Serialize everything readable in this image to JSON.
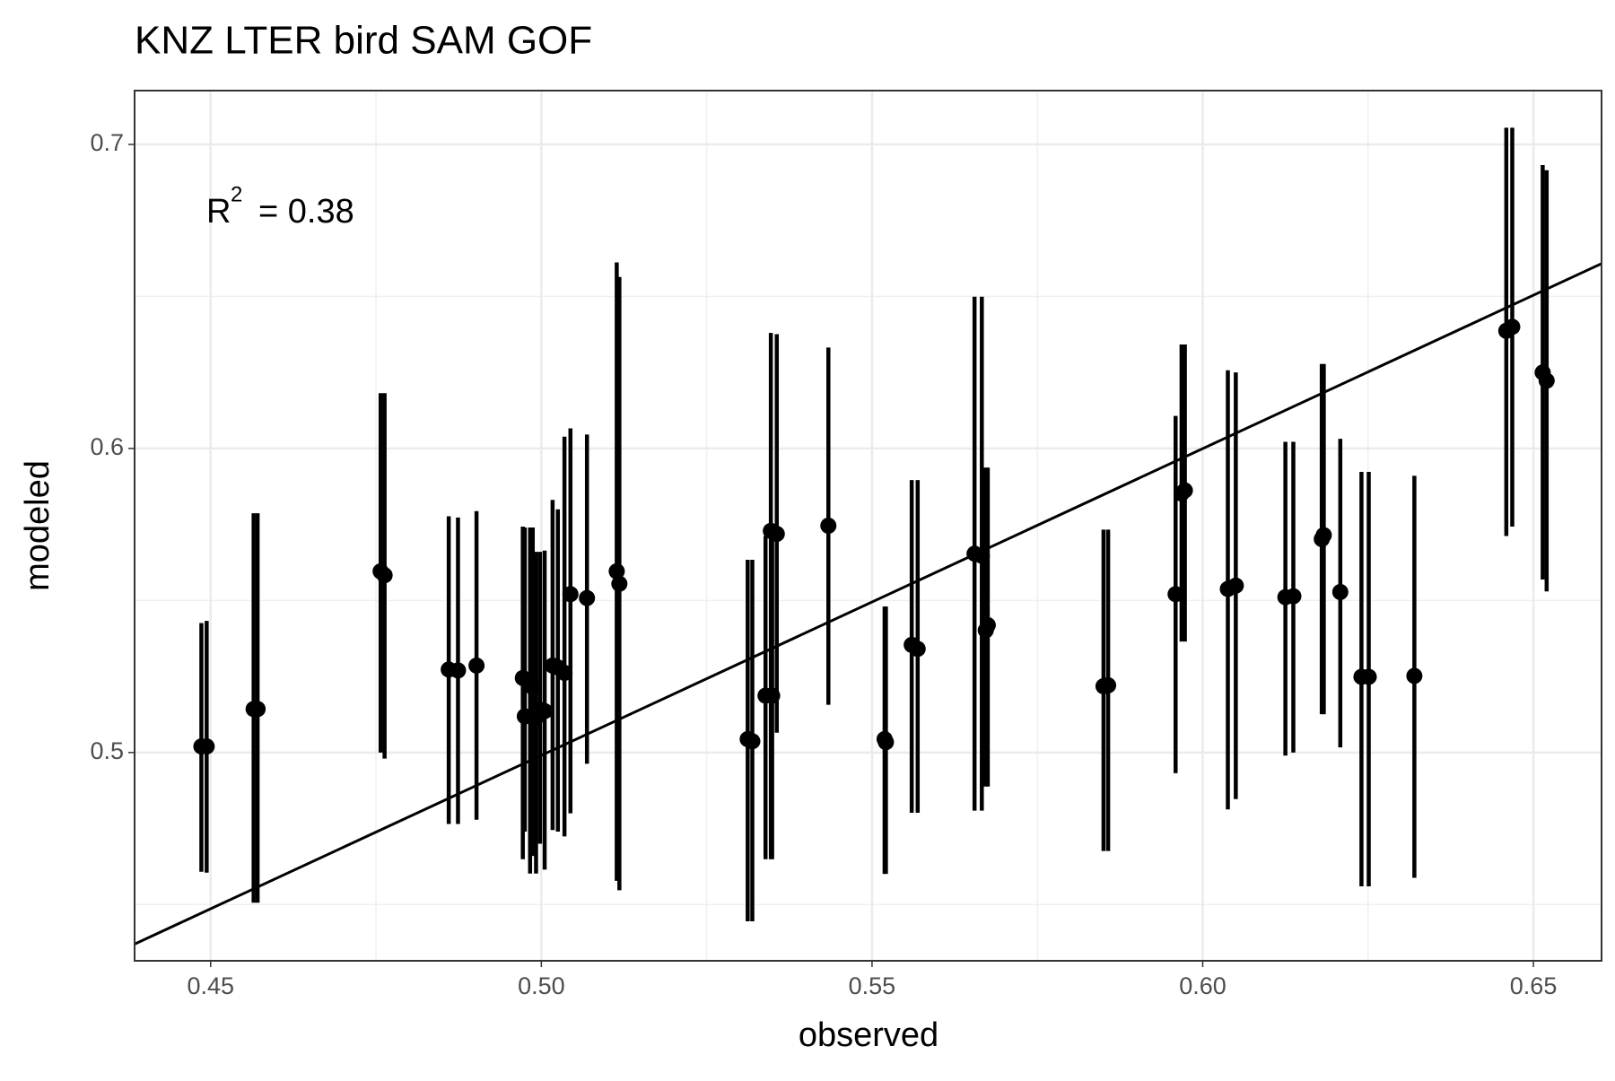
{
  "chart_data": {
    "type": "scatter-errorbar",
    "title": "KNZ LTER bird SAM GOF",
    "x_label": "observed",
    "y_label": "modeled",
    "annotation": {
      "base": "R",
      "superscript": "2",
      "text": "= 0.38"
    },
    "color": "#000000",
    "grid": true,
    "xlim": [
      0.4385,
      0.6603
    ],
    "ylim": [
      0.4315,
      0.7177
    ],
    "xticks": [
      0.45,
      {
        "value": 0.5,
        "label": "0.50"
      },
      0.55,
      {
        "value": 0.6,
        "label": "0.60"
      },
      0.65
    ],
    "yticks": [
      0.5,
      0.6,
      0.7
    ],
    "minor_xticks": [
      0.475,
      0.525,
      0.575,
      0.625
    ],
    "minor_yticks": [
      0.45,
      0.55,
      0.65
    ],
    "x": [
      0.4486,
      0.4494,
      0.4565,
      0.4571,
      0.4757,
      0.4763,
      0.486,
      0.4874,
      0.4902,
      0.4972,
      0.4975,
      0.4983,
      0.4987,
      0.4992,
      0.4998,
      0.5005,
      0.5017,
      0.5025,
      0.5035,
      0.5044,
      0.5069,
      0.5114,
      0.5118,
      0.5312,
      0.5319,
      0.5339,
      0.5349,
      0.5347,
      0.5356,
      0.5434,
      0.5519,
      0.5521,
      0.556,
      0.5569,
      0.5655,
      0.5666,
      0.5672,
      0.5675,
      0.585,
      0.5857,
      0.5959,
      0.5968,
      0.5973,
      0.6038,
      0.605,
      0.6125,
      0.6137,
      0.618,
      0.6183,
      0.6208,
      0.624,
      0.6251,
      0.632,
      0.6459,
      0.6468,
      0.6514,
      0.652
    ],
    "values": [
      0.502,
      0.502,
      0.5143,
      0.5143,
      0.5596,
      0.5583,
      0.5273,
      0.527,
      0.5286,
      0.5245,
      0.5119,
      0.5228,
      0.5215,
      0.5116,
      0.514,
      0.5136,
      0.5286,
      0.528,
      0.5262,
      0.5521,
      0.5508,
      0.5596,
      0.5555,
      0.5044,
      0.5037,
      0.5187,
      0.5187,
      0.5729,
      0.5719,
      0.5746,
      0.5044,
      0.5034,
      0.5354,
      0.5341,
      0.5654,
      0.5647,
      0.5402,
      0.5419,
      0.5218,
      0.5221,
      0.5521,
      0.5852,
      0.5862,
      0.5538,
      0.5549,
      0.5511,
      0.5514,
      0.5702,
      0.5715,
      0.5528,
      0.5249,
      0.5249,
      0.5252,
      0.6387,
      0.64,
      0.625,
      0.6223
    ],
    "lower": [
      0.4608,
      0.4605,
      0.4506,
      0.4506,
      0.5,
      0.498,
      0.4765,
      0.4765,
      0.4779,
      0.4649,
      0.474,
      0.4602,
      0.466,
      0.4602,
      0.47,
      0.4615,
      0.4745,
      0.474,
      0.4724,
      0.48,
      0.4963,
      0.4578,
      0.4547,
      0.4445,
      0.4445,
      0.4649,
      0.4649,
      0.4649,
      0.5065,
      0.5157,
      0.4601,
      0.4601,
      0.4802,
      0.4802,
      0.4809,
      0.4809,
      0.4888,
      0.4888,
      0.4676,
      0.4676,
      0.4932,
      0.5365,
      0.5365,
      0.4813,
      0.4847,
      0.499,
      0.5,
      0.5126,
      0.5126,
      0.5017,
      0.456,
      0.456,
      0.4588,
      0.5712,
      0.5743,
      0.5569,
      0.553
    ],
    "upper": [
      0.5426,
      0.5433,
      0.5787,
      0.5787,
      0.6182,
      0.6182,
      0.5777,
      0.5773,
      0.5794,
      0.5743,
      0.574,
      0.574,
      0.574,
      0.566,
      0.566,
      0.5664,
      0.5831,
      0.58,
      0.6039,
      0.6066,
      0.6046,
      0.6612,
      0.6564,
      0.5634,
      0.5634,
      0.5712,
      0.5712,
      0.638,
      0.6376,
      0.6332,
      0.548,
      0.548,
      0.5896,
      0.5896,
      0.6499,
      0.6499,
      0.5937,
      0.5937,
      0.5733,
      0.5733,
      0.6107,
      0.6342,
      0.6342,
      0.6257,
      0.625,
      0.6022,
      0.6022,
      0.6278,
      0.6278,
      0.6032,
      0.5923,
      0.5923,
      0.591,
      0.7055,
      0.7055,
      0.6932,
      0.6915
    ],
    "fit": {
      "x": [
        0.4385,
        0.6603
      ],
      "y": [
        0.437,
        0.6608
      ]
    }
  }
}
